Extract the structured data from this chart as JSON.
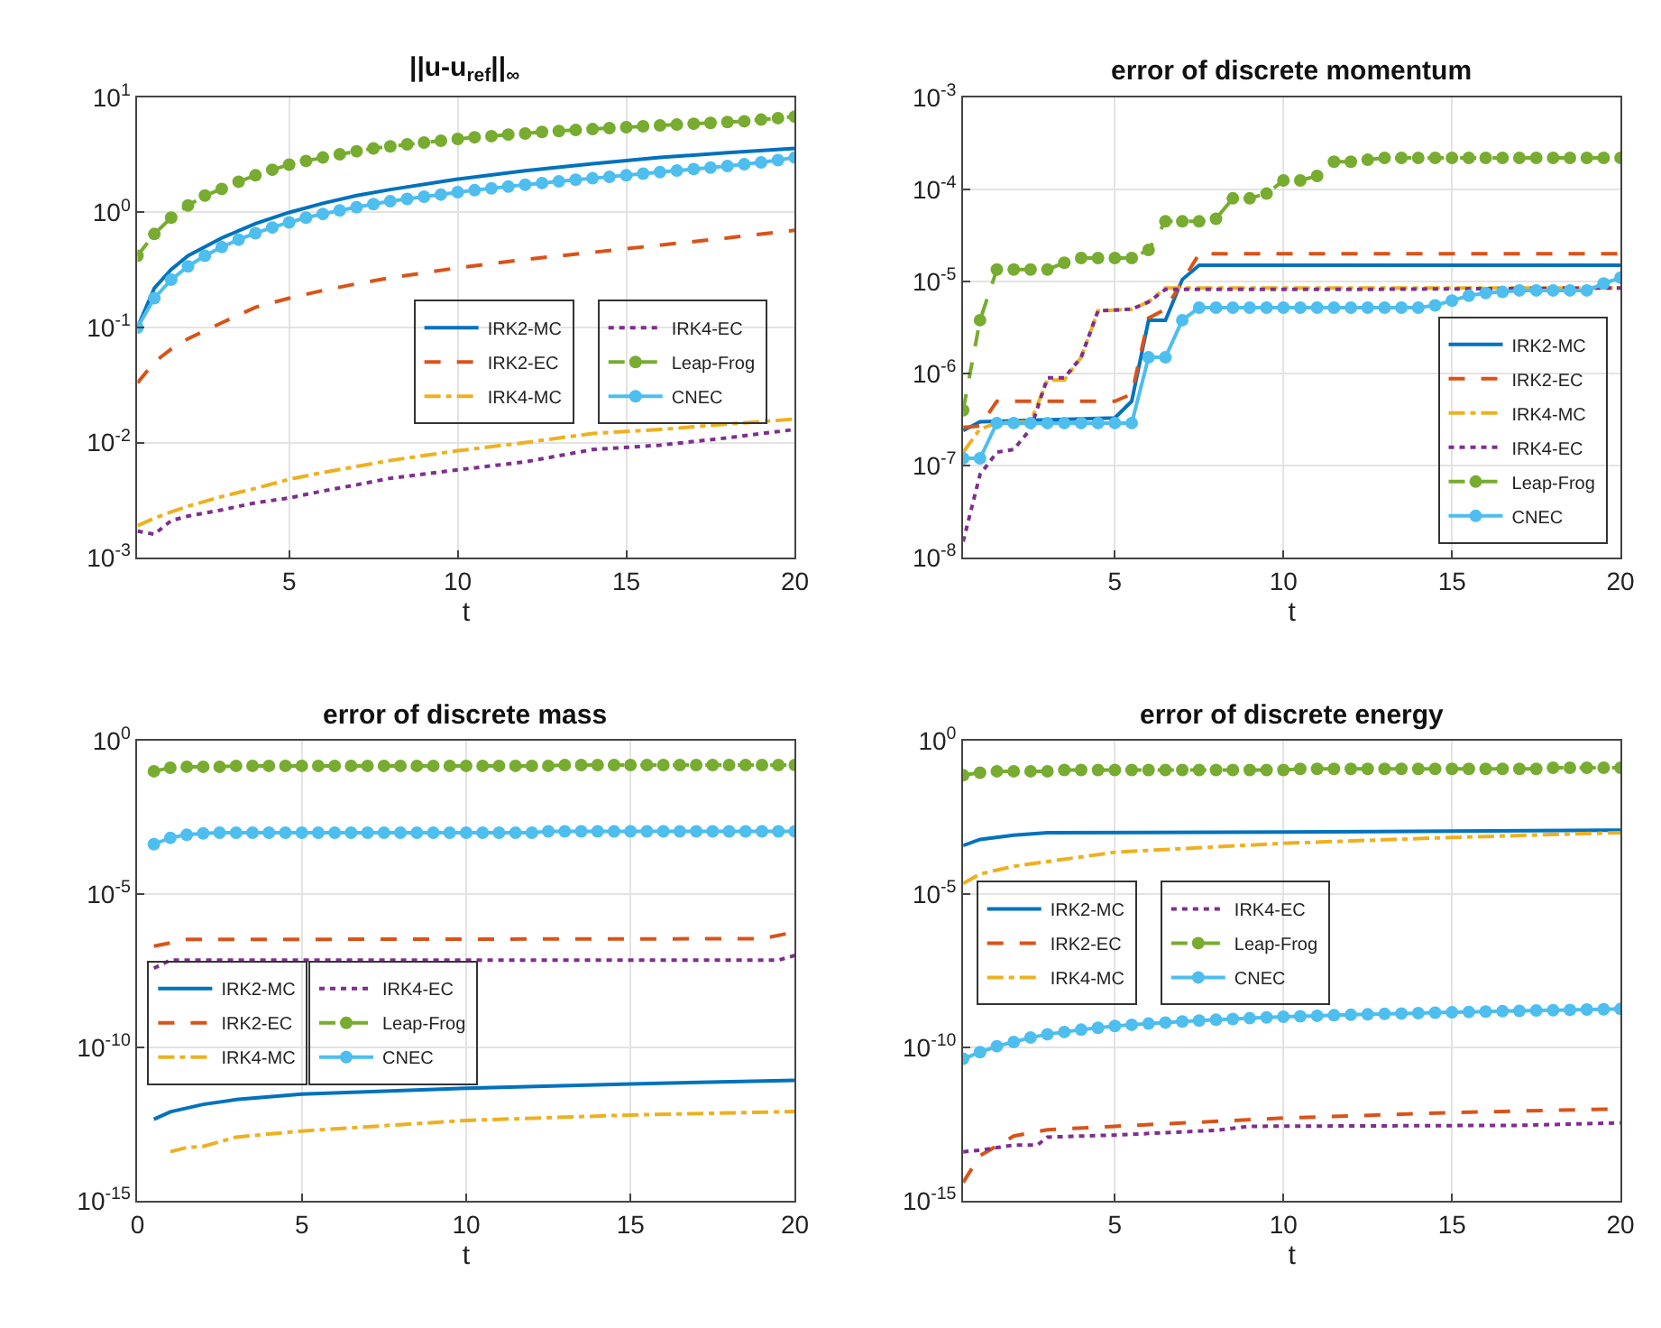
{
  "chart_data": [
    {
      "type": "line",
      "title": "||u-u$_{ref}$||$_{∞}$",
      "xlabel": "t",
      "log": "y",
      "grid": true,
      "legend": "right",
      "xlim": [
        0.5,
        20
      ],
      "xticks": [
        5,
        10,
        15,
        20
      ],
      "ylim": [
        0.001,
        10
      ],
      "yticks": [
        {
          "value": 0.001,
          "label": "10$^{-3}$"
        },
        {
          "value": 0.01,
          "label": "10$^{-2}$"
        },
        {
          "value": 0.1,
          "label": "10$^{-1}$"
        },
        {
          "value": 1,
          "label": "10$^{0}$"
        },
        {
          "value": 10,
          "label": "10$^{1}$"
        }
      ],
      "x": [
        0.5,
        1,
        1.5,
        2,
        2.5,
        3,
        3.5,
        4,
        4.5,
        5,
        5.5,
        6,
        6.5,
        7,
        7.5,
        8,
        8.5,
        9,
        9.5,
        10,
        10.5,
        11,
        11.5,
        12,
        12.5,
        13,
        13.5,
        14,
        14.5,
        15,
        15.5,
        16,
        16.5,
        17,
        17.5,
        18,
        18.5,
        19,
        19.5,
        20
      ],
      "series": [
        {
          "name": "IRK2-MC",
          "color": "#0072bd",
          "line_style": "solid",
          "x": [
            0.5,
            1,
            1.5,
            2,
            3,
            4,
            5,
            6,
            7,
            8,
            10,
            12,
            14,
            16,
            18,
            20
          ],
          "values": [
            0.1,
            0.22,
            0.32,
            0.42,
            0.6,
            0.8,
            1.0,
            1.2,
            1.4,
            1.58,
            1.95,
            2.3,
            2.65,
            3.0,
            3.3,
            3.6
          ]
        },
        {
          "name": "IRK2-EC",
          "color": "#d95319",
          "line_style": "dashed",
          "x": [
            0.5,
            1,
            1.5,
            2,
            3,
            4,
            5,
            6,
            7,
            8,
            10,
            12,
            14,
            16,
            18,
            20
          ],
          "values": [
            0.033,
            0.05,
            0.065,
            0.08,
            0.11,
            0.15,
            0.18,
            0.21,
            0.24,
            0.27,
            0.33,
            0.39,
            0.45,
            0.52,
            0.6,
            0.7
          ]
        },
        {
          "name": "IRK4-MC",
          "color": "#edb120",
          "line_style": "dashdot",
          "x": [
            0.5,
            1,
            1.5,
            2,
            3,
            4,
            5,
            6,
            7,
            8,
            10,
            12,
            14,
            16,
            18,
            20
          ],
          "values": [
            0.0019,
            0.0022,
            0.0025,
            0.0028,
            0.0034,
            0.004,
            0.0048,
            0.0055,
            0.0062,
            0.007,
            0.0085,
            0.01,
            0.012,
            0.013,
            0.0145,
            0.016
          ]
        },
        {
          "name": "IRK4-EC",
          "color": "#7e2f8e",
          "line_style": "dotted",
          "x": [
            0.5,
            1,
            1.5,
            2,
            3,
            4,
            5,
            6,
            7,
            8,
            10,
            12,
            14,
            16,
            18,
            20
          ],
          "values": [
            0.0017,
            0.0016,
            0.0021,
            0.0023,
            0.0026,
            0.003,
            0.0033,
            0.0038,
            0.0043,
            0.0049,
            0.0058,
            0.0068,
            0.0087,
            0.0095,
            0.011,
            0.013
          ]
        },
        {
          "name": "Leap-Frog",
          "color": "#77ac30",
          "line_style": "dashed",
          "marker": "circle",
          "values": [
            0.42,
            0.65,
            0.9,
            1.15,
            1.4,
            1.6,
            1.85,
            2.1,
            2.35,
            2.6,
            2.8,
            3.0,
            3.2,
            3.4,
            3.6,
            3.75,
            3.9,
            4.05,
            4.2,
            4.35,
            4.5,
            4.6,
            4.75,
            4.85,
            5.0,
            5.1,
            5.2,
            5.3,
            5.4,
            5.5,
            5.6,
            5.7,
            5.8,
            5.9,
            6.0,
            6.1,
            6.2,
            6.4,
            6.6,
            6.8
          ]
        },
        {
          "name": "CNEC",
          "color": "#4dbeee",
          "line_style": "solid",
          "marker": "circle",
          "values": [
            0.1,
            0.18,
            0.26,
            0.34,
            0.42,
            0.5,
            0.58,
            0.66,
            0.74,
            0.82,
            0.9,
            0.97,
            1.04,
            1.11,
            1.18,
            1.25,
            1.31,
            1.37,
            1.43,
            1.5,
            1.56,
            1.62,
            1.68,
            1.74,
            1.8,
            1.86,
            1.92,
            1.98,
            2.04,
            2.1,
            2.17,
            2.24,
            2.31,
            2.38,
            2.45,
            2.53,
            2.62,
            2.72,
            2.85,
            3.0
          ]
        }
      ]
    },
    {
      "type": "line",
      "title": "error of discrete momentum",
      "xlabel": "t",
      "log": "y",
      "grid": true,
      "legend": "bottom right",
      "xlim": [
        0.5,
        20
      ],
      "xticks": [
        5,
        10,
        15,
        20
      ],
      "ylim": [
        1e-08,
        0.001
      ],
      "yticks": [
        {
          "value": 1e-08,
          "label": "10$^{-8}$"
        },
        {
          "value": 1e-07,
          "label": "10$^{-7}$"
        },
        {
          "value": 1e-06,
          "label": "10$^{-6}$"
        },
        {
          "value": 1e-05,
          "label": "10$^{-5}$"
        },
        {
          "value": 0.0001,
          "label": "10$^{-4}$"
        },
        {
          "value": 0.001,
          "label": "10$^{-3}$"
        }
      ],
      "x": [
        0.5,
        1,
        1.5,
        2,
        2.5,
        3,
        3.5,
        4,
        4.5,
        5,
        5.5,
        6,
        6.5,
        7,
        7.5,
        8,
        8.5,
        9,
        9.5,
        10,
        10.5,
        11,
        11.5,
        12,
        12.5,
        13,
        13.5,
        14,
        14.5,
        15,
        15.5,
        16,
        16.5,
        17,
        17.5,
        18,
        18.5,
        19,
        19.5,
        20
      ],
      "series": [
        {
          "name": "IRK2-MC",
          "color": "#0072bd",
          "line_style": "solid",
          "x": [
            0.5,
            1,
            5,
            5.5,
            6,
            6.5,
            7,
            7.5,
            20
          ],
          "values": [
            2.4e-07,
            3e-07,
            3.3e-07,
            5e-07,
            3.8e-06,
            3.8e-06,
            1.05e-05,
            1.5e-05,
            1.5e-05
          ]
        },
        {
          "name": "IRK2-EC",
          "color": "#d95319",
          "line_style": "dashed",
          "x": [
            0.5,
            1,
            1.5,
            5,
            5.5,
            6,
            6.5,
            7,
            7.5,
            20
          ],
          "values": [
            2.6e-07,
            2.7e-07,
            5e-07,
            5e-07,
            6e-07,
            4e-06,
            5e-06,
            1e-05,
            2e-05,
            2e-05
          ]
        },
        {
          "name": "IRK4-MC",
          "color": "#edb120",
          "line_style": "dashdot",
          "x": [
            0.5,
            1,
            1.5,
            2.5,
            3,
            3.5,
            4,
            4.5,
            5.5,
            6,
            6.5,
            20
          ],
          "values": [
            1.4e-07,
            2.5e-07,
            2.9e-07,
            3e-07,
            8.5e-07,
            8.5e-07,
            1.5e-06,
            4.8e-06,
            5e-06,
            6e-06,
            8.5e-06,
            8.5e-06
          ]
        },
        {
          "name": "IRK4-EC",
          "color": "#7e2f8e",
          "line_style": "dotted",
          "x": [
            0.5,
            1,
            1.5,
            2,
            2.5,
            3,
            3.5,
            4,
            4.5,
            5.5,
            6,
            6.5,
            12,
            20
          ],
          "values": [
            1.5e-08,
            8e-08,
            1.4e-07,
            1.5e-07,
            2.5e-07,
            9e-07,
            9e-07,
            1.5e-06,
            4.8e-06,
            5e-06,
            6e-06,
            8.2e-06,
            8.2e-06,
            8.5e-06
          ]
        },
        {
          "name": "Leap-Frog",
          "color": "#77ac30",
          "line_style": "dashed",
          "marker": "circle",
          "values": [
            4e-07,
            3.8e-06,
            1.35e-05,
            1.35e-05,
            1.35e-05,
            1.35e-05,
            1.6e-05,
            1.8e-05,
            1.8e-05,
            1.8e-05,
            1.8e-05,
            2.2e-05,
            4.5e-05,
            4.5e-05,
            4.5e-05,
            4.8e-05,
            8e-05,
            8e-05,
            9e-05,
            0.000125,
            0.000125,
            0.00014,
            0.0002,
            0.0002,
            0.00021,
            0.00022,
            0.00022,
            0.00022,
            0.00022,
            0.00022,
            0.00022,
            0.00022,
            0.00022,
            0.00022,
            0.00022,
            0.00022,
            0.00022,
            0.00022,
            0.00022,
            0.00022
          ]
        },
        {
          "name": "CNEC",
          "color": "#4dbeee",
          "line_style": "solid",
          "marker": "circle",
          "values": [
            1.2e-07,
            1.2e-07,
            2.9e-07,
            2.9e-07,
            2.9e-07,
            2.9e-07,
            2.9e-07,
            2.9e-07,
            2.9e-07,
            2.9e-07,
            2.9e-07,
            1.5e-06,
            1.5e-06,
            3.8e-06,
            5.2e-06,
            5.2e-06,
            5.2e-06,
            5.2e-06,
            5.2e-06,
            5.2e-06,
            5.2e-06,
            5.2e-06,
            5.2e-06,
            5.2e-06,
            5.2e-06,
            5.2e-06,
            5.2e-06,
            5.2e-06,
            5.5e-06,
            6.2e-06,
            7e-06,
            7.5e-06,
            7.7e-06,
            8e-06,
            8e-06,
            8e-06,
            8e-06,
            8e-06,
            9.5e-06,
            1.1e-05
          ]
        }
      ]
    },
    {
      "type": "line",
      "title": "error of discrete mass",
      "xlabel": "t",
      "log": "y",
      "grid": true,
      "legend": "left",
      "xlim": [
        0,
        20
      ],
      "xticks": [
        0,
        5,
        10,
        15,
        20
      ],
      "ylim": [
        1e-15,
        1
      ],
      "yticks": [
        {
          "value": 1e-15,
          "label": "10$^{-15}$"
        },
        {
          "value": 1e-10,
          "label": "10$^{-10}$"
        },
        {
          "value": 1e-05,
          "label": "10$^{-5}$"
        },
        {
          "value": 1,
          "label": "10$^{0}$"
        }
      ],
      "x": [
        0.5,
        1,
        1.5,
        2,
        2.5,
        3,
        3.5,
        4,
        4.5,
        5,
        5.5,
        6,
        6.5,
        7,
        7.5,
        8,
        8.5,
        9,
        9.5,
        10,
        10.5,
        11,
        11.5,
        12,
        12.5,
        13,
        13.5,
        14,
        14.5,
        15,
        15.5,
        16,
        16.5,
        17,
        17.5,
        18,
        18.5,
        19,
        19.5,
        20
      ],
      "series": [
        {
          "name": "IRK2-MC",
          "color": "#0072bd",
          "line_style": "solid",
          "x": [
            0.5,
            1,
            2,
            3,
            5,
            10,
            15,
            20
          ],
          "values": [
            4.6e-13,
            8e-13,
            1.4e-12,
            2e-12,
            3e-12,
            4.7e-12,
            6.5e-12,
            8.5e-12
          ]
        },
        {
          "name": "IRK2-EC",
          "color": "#d95319",
          "line_style": "dashed",
          "x": [
            0.5,
            1.5,
            19,
            20
          ],
          "values": [
            2e-07,
            3.3e-07,
            3.5e-07,
            5.8e-07
          ]
        },
        {
          "name": "IRK4-MC",
          "color": "#edb120",
          "line_style": "dashdot",
          "x": [
            1,
            1.5,
            2,
            3,
            5,
            10,
            15,
            20
          ],
          "values": [
            4e-14,
            5.5e-14,
            6e-14,
            1.2e-13,
            1.9e-13,
            4.2e-13,
            6.3e-13,
            8.2e-13
          ]
        },
        {
          "name": "IRK4-EC",
          "color": "#7e2f8e",
          "line_style": "dotted",
          "x": [
            0.5,
            1,
            19.5,
            20
          ],
          "values": [
            3.8e-08,
            7e-08,
            7e-08,
            1e-07
          ]
        },
        {
          "name": "Leap-Frog",
          "color": "#77ac30",
          "line_style": "dashed",
          "marker": "circle",
          "values": [
            0.1,
            0.13,
            0.14,
            0.14,
            0.14,
            0.15,
            0.15,
            0.15,
            0.15,
            0.15,
            0.15,
            0.15,
            0.15,
            0.15,
            0.15,
            0.15,
            0.15,
            0.15,
            0.15,
            0.15,
            0.15,
            0.15,
            0.15,
            0.15,
            0.15,
            0.16,
            0.16,
            0.16,
            0.16,
            0.16,
            0.16,
            0.16,
            0.16,
            0.16,
            0.16,
            0.16,
            0.16,
            0.16,
            0.16,
            0.16
          ]
        },
        {
          "name": "CNEC",
          "color": "#4dbeee",
          "line_style": "solid",
          "marker": "circle",
          "values": [
            0.00042,
            0.00068,
            0.00085,
            0.00095,
            0.001,
            0.001,
            0.001,
            0.001,
            0.001,
            0.001,
            0.001,
            0.001,
            0.001,
            0.001,
            0.001,
            0.001,
            0.001,
            0.001,
            0.001,
            0.001,
            0.001,
            0.001,
            0.001,
            0.001,
            0.0011,
            0.0011,
            0.0011,
            0.0011,
            0.0011,
            0.0011,
            0.0011,
            0.0011,
            0.0011,
            0.0011,
            0.0011,
            0.0011,
            0.0011,
            0.0011,
            0.0011,
            0.0011
          ]
        }
      ]
    },
    {
      "type": "line",
      "title": "error of discrete energy",
      "xlabel": "t",
      "log": "y",
      "grid": true,
      "legend": "left",
      "xlim": [
        0.5,
        20
      ],
      "xticks": [
        5,
        10,
        15,
        20
      ],
      "ylim": [
        1e-15,
        1
      ],
      "yticks": [
        {
          "value": 1e-15,
          "label": "10$^{-15}$"
        },
        {
          "value": 1e-10,
          "label": "10$^{-10}$"
        },
        {
          "value": 1e-05,
          "label": "10$^{-5}$"
        },
        {
          "value": 1,
          "label": "10$^{0}$"
        }
      ],
      "x": [
        0.5,
        1,
        1.5,
        2,
        2.5,
        3,
        3.5,
        4,
        4.5,
        5,
        5.5,
        6,
        6.5,
        7,
        7.5,
        8,
        8.5,
        9,
        9.5,
        10,
        10.5,
        11,
        11.5,
        12,
        12.5,
        13,
        13.5,
        14,
        14.5,
        15,
        15.5,
        16,
        16.5,
        17,
        17.5,
        18,
        18.5,
        19,
        19.5,
        20
      ],
      "series": [
        {
          "name": "IRK2-MC",
          "color": "#0072bd",
          "line_style": "solid",
          "x": [
            0.5,
            1,
            2,
            3,
            10,
            20
          ],
          "values": [
            0.00038,
            0.0006,
            0.00083,
            0.001,
            0.00105,
            0.0012
          ]
        },
        {
          "name": "IRK2-EC",
          "color": "#d95319",
          "line_style": "dashed",
          "x": [
            0.5,
            1,
            2,
            3,
            5,
            10,
            15,
            20
          ],
          "values": [
            4e-15,
            3e-14,
            1.3e-13,
            2.1e-13,
            2.7e-13,
            5e-13,
            7.6e-13,
            1e-12
          ]
        },
        {
          "name": "IRK4-MC",
          "color": "#edb120",
          "line_style": "dashdot",
          "x": [
            0.5,
            1,
            2,
            5,
            10,
            15,
            20
          ],
          "values": [
            2.2e-05,
            4.5e-05,
            8e-05,
            0.00023,
            0.00045,
            0.0007,
            0.001
          ]
        },
        {
          "name": "IRK4-EC",
          "color": "#7e2f8e",
          "line_style": "dotted",
          "x": [
            0.5,
            1,
            2,
            2.7,
            3,
            5,
            8,
            9,
            17,
            20
          ],
          "values": [
            4e-14,
            4.5e-14,
            6.6e-14,
            6.6e-14,
            1.2e-13,
            1.4e-13,
            2e-13,
            2.7e-13,
            2.9e-13,
            3.5e-13
          ]
        },
        {
          "name": "Leap-Frog",
          "color": "#77ac30",
          "line_style": "dashed",
          "marker": "circle",
          "values": [
            0.074,
            0.09,
            0.1,
            0.1,
            0.1,
            0.1,
            0.11,
            0.11,
            0.11,
            0.11,
            0.11,
            0.11,
            0.11,
            0.11,
            0.11,
            0.11,
            0.11,
            0.11,
            0.11,
            0.11,
            0.12,
            0.12,
            0.12,
            0.12,
            0.12,
            0.12,
            0.12,
            0.12,
            0.12,
            0.12,
            0.12,
            0.12,
            0.12,
            0.12,
            0.12,
            0.13,
            0.13,
            0.13,
            0.13,
            0.13
          ]
        },
        {
          "name": "CNEC",
          "color": "#4dbeee",
          "line_style": "solid",
          "marker": "circle",
          "values": [
            4.3e-11,
            7e-11,
            1.1e-10,
            1.5e-10,
            2.1e-10,
            2.7e-10,
            3.2e-10,
            3.8e-10,
            4.4e-10,
            5e-10,
            5.5e-10,
            6e-10,
            6.5e-10,
            7e-10,
            7.5e-10,
            8e-10,
            8.5e-10,
            9e-10,
            9.5e-10,
            1e-09,
            1.04e-09,
            1.08e-09,
            1.12e-09,
            1.16e-09,
            1.2e-09,
            1.24e-09,
            1.28e-09,
            1.32e-09,
            1.36e-09,
            1.4e-09,
            1.44e-09,
            1.48e-09,
            1.52e-09,
            1.56e-09,
            1.6e-09,
            1.64e-09,
            1.68e-09,
            1.72e-09,
            1.76e-09,
            1.8e-09
          ]
        }
      ]
    }
  ]
}
